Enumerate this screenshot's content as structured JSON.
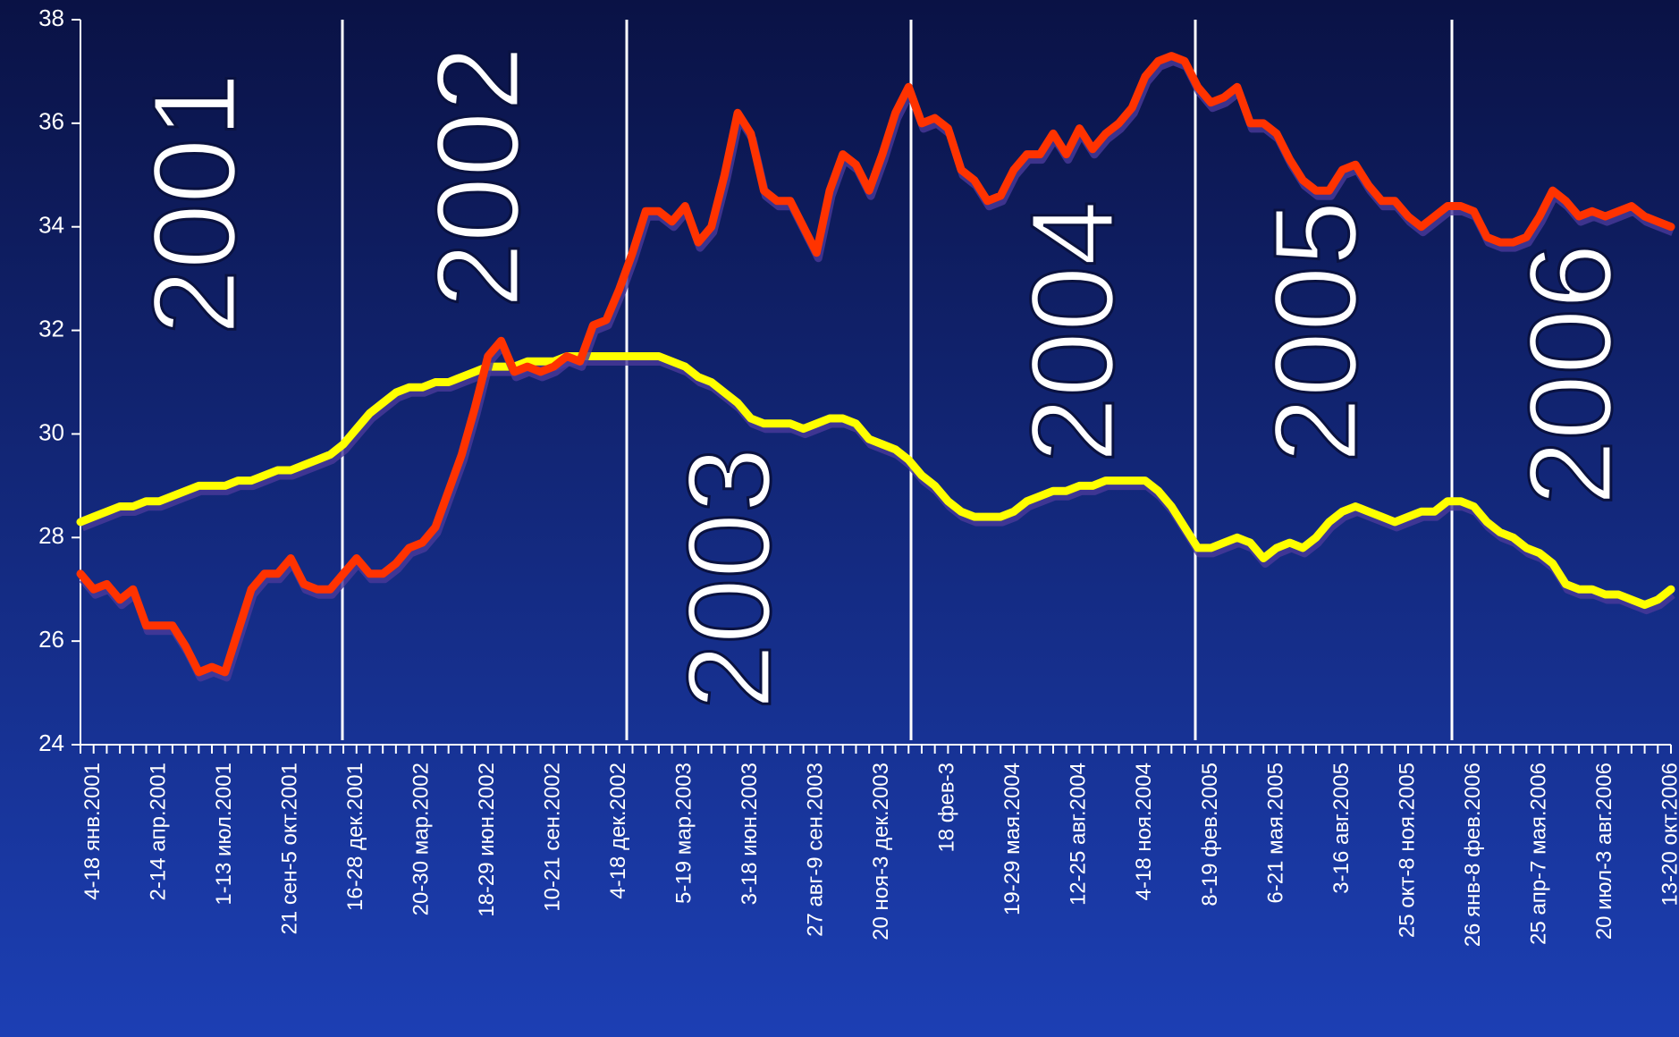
{
  "chart_data": {
    "type": "line",
    "annotations": [
      "2001",
      "2002",
      "2003",
      "2004",
      "2005",
      "2006"
    ],
    "categories": [
      null,
      "4-18 янв.2001",
      null,
      null,
      null,
      null,
      "2-14 апр.2001",
      null,
      null,
      null,
      null,
      "1-13 июл.2001",
      null,
      null,
      null,
      null,
      "21 сен-5 окт.2001",
      null,
      null,
      null,
      null,
      "16-28 дек.2001",
      null,
      null,
      null,
      null,
      "20-30 мар.2002",
      null,
      null,
      null,
      null,
      "18-29 июн.2002",
      null,
      null,
      null,
      null,
      "10-21 сен.2002",
      null,
      null,
      null,
      null,
      "4-18 дек.2002",
      null,
      null,
      null,
      null,
      "5-19 мар.2003",
      null,
      null,
      null,
      null,
      "3-18 июн.2003",
      null,
      null,
      null,
      null,
      "27 авг-9 сен.2003",
      null,
      null,
      null,
      null,
      "20 ноя-3 дек.2003",
      null,
      null,
      null,
      null,
      "18 фев-3",
      null,
      null,
      null,
      null,
      "19-29 мая.2004",
      null,
      null,
      null,
      null,
      "12-25 авг.2004",
      null,
      null,
      null,
      null,
      "4-18 ноя.2004",
      null,
      null,
      null,
      null,
      "8-19 фев.2005",
      null,
      null,
      null,
      null,
      "6-21 мая.2005",
      null,
      null,
      null,
      null,
      "3-16 авг.2005",
      null,
      null,
      null,
      null,
      "25 окт-8 ноя.2005",
      null,
      null,
      null,
      null,
      "26 янв-8 фев.2006",
      null,
      null,
      null,
      null,
      "25 апр-7 мая.2006",
      null,
      null,
      null,
      null,
      "20 июл-3 авг.2006",
      null,
      null,
      null,
      null,
      "13-20 окт.2006"
    ],
    "series": [
      {
        "color": "#ff3300",
        "values": [
          27.3,
          27.0,
          27.1,
          26.8,
          27.0,
          26.3,
          26.3,
          26.3,
          25.9,
          25.4,
          25.5,
          25.4,
          26.2,
          27.0,
          27.3,
          27.3,
          27.6,
          27.1,
          27.0,
          27.0,
          27.3,
          27.6,
          27.3,
          27.3,
          27.5,
          27.8,
          27.9,
          28.2,
          28.9,
          29.6,
          30.5,
          31.5,
          31.8,
          31.2,
          31.3,
          31.2,
          31.3,
          31.5,
          31.4,
          32.1,
          32.2,
          32.8,
          33.5,
          34.3,
          34.3,
          34.1,
          34.4,
          33.7,
          34.0,
          35.0,
          36.2,
          35.8,
          34.7,
          34.5,
          34.5,
          34.0,
          33.5,
          34.7,
          35.4,
          35.2,
          34.7,
          35.4,
          36.2,
          36.7,
          36.0,
          36.1,
          35.9,
          35.1,
          34.9,
          34.5,
          34.6,
          35.1,
          35.4,
          35.4,
          35.8,
          35.4,
          35.9,
          35.5,
          35.8,
          36.0,
          36.3,
          36.9,
          37.2,
          37.3,
          37.2,
          36.7,
          36.4,
          36.5,
          36.7,
          36.0,
          36.0,
          35.8,
          35.3,
          34.9,
          34.7,
          34.7,
          35.1,
          35.2,
          34.8,
          34.5,
          34.5,
          34.2,
          34.0,
          34.2,
          34.4,
          34.4,
          34.3,
          33.8,
          33.7,
          33.7,
          33.8,
          34.2,
          34.7,
          34.5,
          34.2,
          34.3,
          34.2,
          34.3,
          34.4,
          34.2,
          34.1,
          34.0
        ]
      },
      {
        "color": "#ffff00",
        "values": [
          28.3,
          28.4,
          28.5,
          28.6,
          28.6,
          28.7,
          28.7,
          28.8,
          28.9,
          29.0,
          29.0,
          29.0,
          29.1,
          29.1,
          29.2,
          29.3,
          29.3,
          29.4,
          29.5,
          29.6,
          29.8,
          30.1,
          30.4,
          30.6,
          30.8,
          30.9,
          30.9,
          31.0,
          31.0,
          31.1,
          31.2,
          31.3,
          31.3,
          31.3,
          31.4,
          31.4,
          31.4,
          31.5,
          31.5,
          31.5,
          31.5,
          31.5,
          31.5,
          31.5,
          31.5,
          31.4,
          31.3,
          31.1,
          31.0,
          30.8,
          30.6,
          30.3,
          30.2,
          30.2,
          30.2,
          30.1,
          30.2,
          30.3,
          30.3,
          30.2,
          29.9,
          29.8,
          29.7,
          29.5,
          29.2,
          29.0,
          28.7,
          28.5,
          28.4,
          28.4,
          28.4,
          28.5,
          28.7,
          28.8,
          28.9,
          28.9,
          29.0,
          29.0,
          29.1,
          29.1,
          29.1,
          29.1,
          28.9,
          28.6,
          28.2,
          27.8,
          27.8,
          27.9,
          28.0,
          27.9,
          27.6,
          27.8,
          27.9,
          27.8,
          28.0,
          28.3,
          28.5,
          28.6,
          28.5,
          28.4,
          28.3,
          28.4,
          28.5,
          28.5,
          28.7,
          28.7,
          28.6,
          28.3,
          28.1,
          28.0,
          27.8,
          27.7,
          27.5,
          27.1,
          27.0,
          27.0,
          26.9,
          26.9,
          26.8,
          26.7,
          26.8,
          27.0
        ]
      }
    ],
    "ylim": [
      24,
      38
    ],
    "yticks": [
      24,
      26,
      28,
      30,
      32,
      34,
      36,
      38
    ]
  }
}
